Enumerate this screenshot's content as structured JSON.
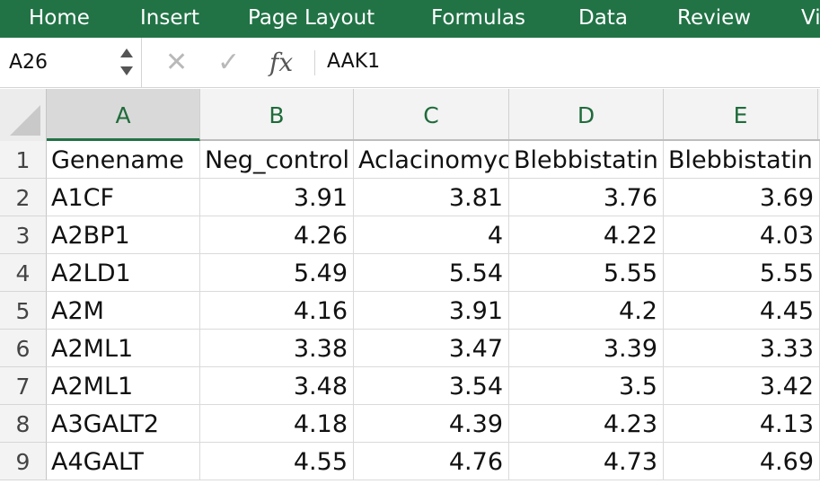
{
  "ribbon": {
    "tabs": [
      "Home",
      "Insert",
      "Page Layout",
      "Formulas",
      "Data",
      "Review",
      "Vi"
    ],
    "color": "#217346"
  },
  "formula_bar": {
    "name_box": "A26",
    "cancel_icon": "cancel-icon",
    "enter_icon": "checkmark-icon",
    "fx_label": "fx",
    "formula": "AAK1"
  },
  "sheet": {
    "columns": [
      "A",
      "B",
      "C",
      "D",
      "E"
    ],
    "row_numbers": [
      "1",
      "2",
      "3",
      "4",
      "5",
      "6",
      "7",
      "8",
      "9"
    ],
    "rows": [
      [
        "Genename",
        "Neg_control",
        "Aclacinomycin",
        "Blebbistatin",
        "Blebbistatin"
      ],
      [
        "A1CF",
        "3.91",
        "3.81",
        "3.76",
        "3.69"
      ],
      [
        "A2BP1",
        "4.26",
        "4",
        "4.22",
        "4.03"
      ],
      [
        "A2LD1",
        "5.49",
        "5.54",
        "5.55",
        "5.55"
      ],
      [
        "A2M",
        "4.16",
        "3.91",
        "4.2",
        "4.45"
      ],
      [
        "A2ML1",
        "3.38",
        "3.47",
        "3.39",
        "3.33"
      ],
      [
        "A2ML1",
        "3.48",
        "3.54",
        "3.5",
        "3.42"
      ],
      [
        "A3GALT2",
        "4.18",
        "4.39",
        "4.23",
        "4.13"
      ],
      [
        "A4GALT",
        "4.55",
        "4.76",
        "4.73",
        "4.69"
      ]
    ]
  }
}
